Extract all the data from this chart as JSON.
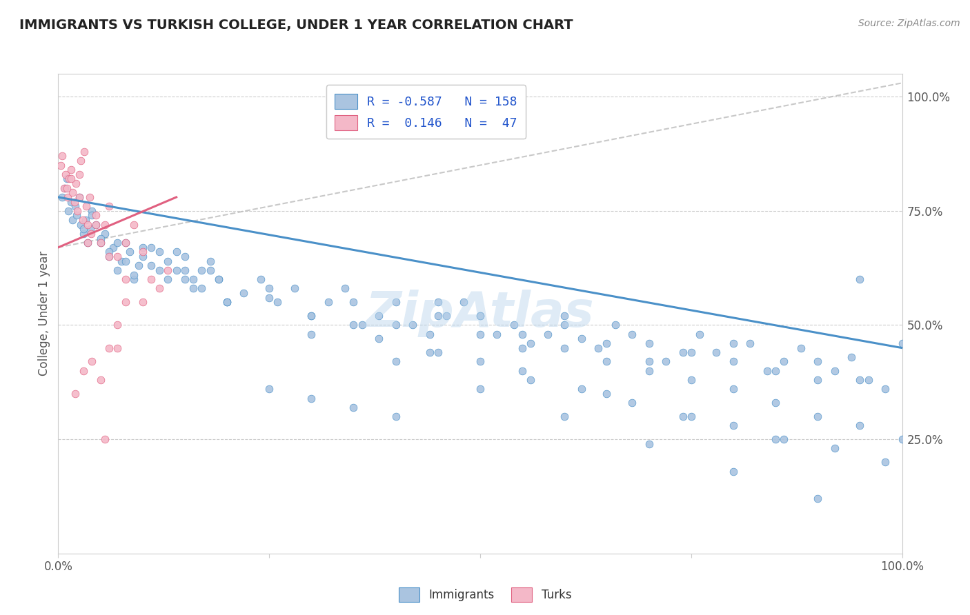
{
  "title": "IMMIGRANTS VS TURKISH COLLEGE, UNDER 1 YEAR CORRELATION CHART",
  "source": "Source: ZipAtlas.com",
  "ylabel": "College, Under 1 year",
  "watermark": "ZipAtlas",
  "blue_color": "#aac4e0",
  "pink_color": "#f4b8c8",
  "trend_blue": "#4a90c8",
  "trend_pink": "#e06080",
  "blue_scatter_x": [
    0.5,
    0.8,
    1.0,
    1.2,
    1.5,
    1.7,
    2.0,
    2.2,
    2.5,
    2.7,
    3.0,
    3.2,
    3.5,
    3.8,
    4.0,
    4.5,
    5.0,
    5.5,
    6.0,
    6.5,
    7.0,
    7.5,
    8.0,
    8.5,
    9.0,
    9.5,
    10.0,
    11.0,
    12.0,
    13.0,
    14.0,
    15.0,
    16.0,
    17.0,
    18.0,
    19.0,
    20.0,
    22.0,
    24.0,
    26.0,
    28.0,
    30.0,
    32.0,
    34.0,
    36.0,
    38.0,
    40.0,
    42.0,
    44.0,
    46.0,
    48.0,
    50.0,
    52.0,
    54.0,
    56.0,
    58.0,
    60.0,
    62.0,
    64.0,
    66.0,
    68.0,
    70.0,
    72.0,
    74.0,
    76.0,
    78.0,
    80.0,
    82.0,
    84.0,
    86.0,
    88.0,
    90.0,
    92.0,
    94.0,
    96.0,
    98.0,
    100.0,
    3.0,
    4.0,
    5.0,
    6.0,
    7.0,
    8.0,
    9.0,
    10.0,
    11.0,
    12.0,
    13.0,
    14.0,
    15.0,
    16.0,
    17.0,
    18.0,
    19.0,
    20.0,
    25.0,
    30.0,
    35.0,
    40.0,
    45.0,
    50.0,
    55.0,
    60.0,
    65.0,
    70.0,
    75.0,
    80.0,
    85.0,
    90.0,
    95.0,
    25.0,
    30.0,
    35.0,
    40.0,
    45.0,
    50.0,
    55.0,
    60.0,
    65.0,
    70.0,
    75.0,
    80.0,
    85.0,
    90.0,
    95.0,
    100.0,
    38.0,
    44.0,
    50.0,
    56.0,
    62.0,
    68.0,
    74.0,
    80.0,
    86.0,
    92.0,
    98.0,
    15.0,
    25.0,
    35.0,
    45.0,
    55.0,
    65.0,
    75.0,
    85.0,
    95.0,
    20.0,
    30.0,
    40.0,
    50.0,
    60.0,
    70.0,
    80.0,
    90.0,
    100.0
  ],
  "blue_scatter_y": [
    78,
    80,
    82,
    75,
    77,
    73,
    76,
    74,
    78,
    72,
    70,
    73,
    68,
    71,
    75,
    72,
    68,
    70,
    65,
    67,
    62,
    64,
    68,
    66,
    60,
    63,
    65,
    67,
    62,
    64,
    66,
    60,
    58,
    62,
    64,
    60,
    55,
    57,
    60,
    55,
    58,
    52,
    55,
    58,
    50,
    52,
    55,
    50,
    48,
    52,
    55,
    52,
    48,
    50,
    46,
    48,
    52,
    47,
    45,
    50,
    48,
    46,
    42,
    44,
    48,
    44,
    42,
    46,
    40,
    42,
    45,
    38,
    40,
    43,
    38,
    36,
    46,
    71,
    74,
    69,
    66,
    68,
    64,
    61,
    67,
    63,
    66,
    60,
    62,
    65,
    60,
    58,
    62,
    60,
    55,
    58,
    52,
    55,
    50,
    52,
    48,
    45,
    50,
    46,
    42,
    44,
    46,
    40,
    42,
    38,
    36,
    34,
    32,
    30,
    55,
    52,
    48,
    45,
    42,
    40,
    38,
    36,
    33,
    30,
    28,
    25,
    47,
    44,
    42,
    38,
    36,
    33,
    30,
    28,
    25,
    23,
    20,
    62,
    56,
    50,
    44,
    40,
    35,
    30,
    25,
    60,
    55,
    48,
    42,
    36,
    30,
    24,
    18,
    12
  ],
  "pink_scatter_x": [
    0.3,
    0.5,
    0.7,
    0.9,
    1.1,
    1.3,
    1.5,
    1.7,
    1.9,
    2.1,
    2.3,
    2.5,
    2.7,
    2.9,
    3.1,
    3.3,
    3.5,
    3.7,
    3.9,
    4.5,
    5.0,
    5.5,
    6.0,
    7.0,
    8.0,
    9.0,
    10.0,
    11.0,
    12.0,
    13.0,
    2.0,
    3.0,
    4.0,
    5.0,
    6.0,
    7.0,
    8.0,
    1.0,
    1.5,
    2.5,
    3.5,
    4.5,
    6.0,
    8.0,
    10.0,
    5.5,
    7.0
  ],
  "pink_scatter_y": [
    85,
    87,
    80,
    83,
    78,
    82,
    84,
    79,
    77,
    81,
    75,
    83,
    86,
    73,
    88,
    76,
    72,
    78,
    70,
    74,
    68,
    72,
    76,
    65,
    68,
    72,
    66,
    60,
    58,
    62,
    35,
    40,
    42,
    38,
    45,
    50,
    55,
    80,
    82,
    78,
    68,
    72,
    65,
    60,
    55,
    25,
    45
  ],
  "blue_trend_x": [
    0,
    100
  ],
  "blue_trend_y": [
    78,
    45
  ],
  "pink_trend_x": [
    0,
    14
  ],
  "pink_trend_y": [
    67,
    78
  ],
  "gray_trend_x": [
    0,
    100
  ],
  "gray_trend_y": [
    67,
    103
  ],
  "xlim": [
    0,
    100
  ],
  "ylim": [
    0,
    105
  ],
  "figsize": [
    14.06,
    8.92
  ],
  "dpi": 100
}
